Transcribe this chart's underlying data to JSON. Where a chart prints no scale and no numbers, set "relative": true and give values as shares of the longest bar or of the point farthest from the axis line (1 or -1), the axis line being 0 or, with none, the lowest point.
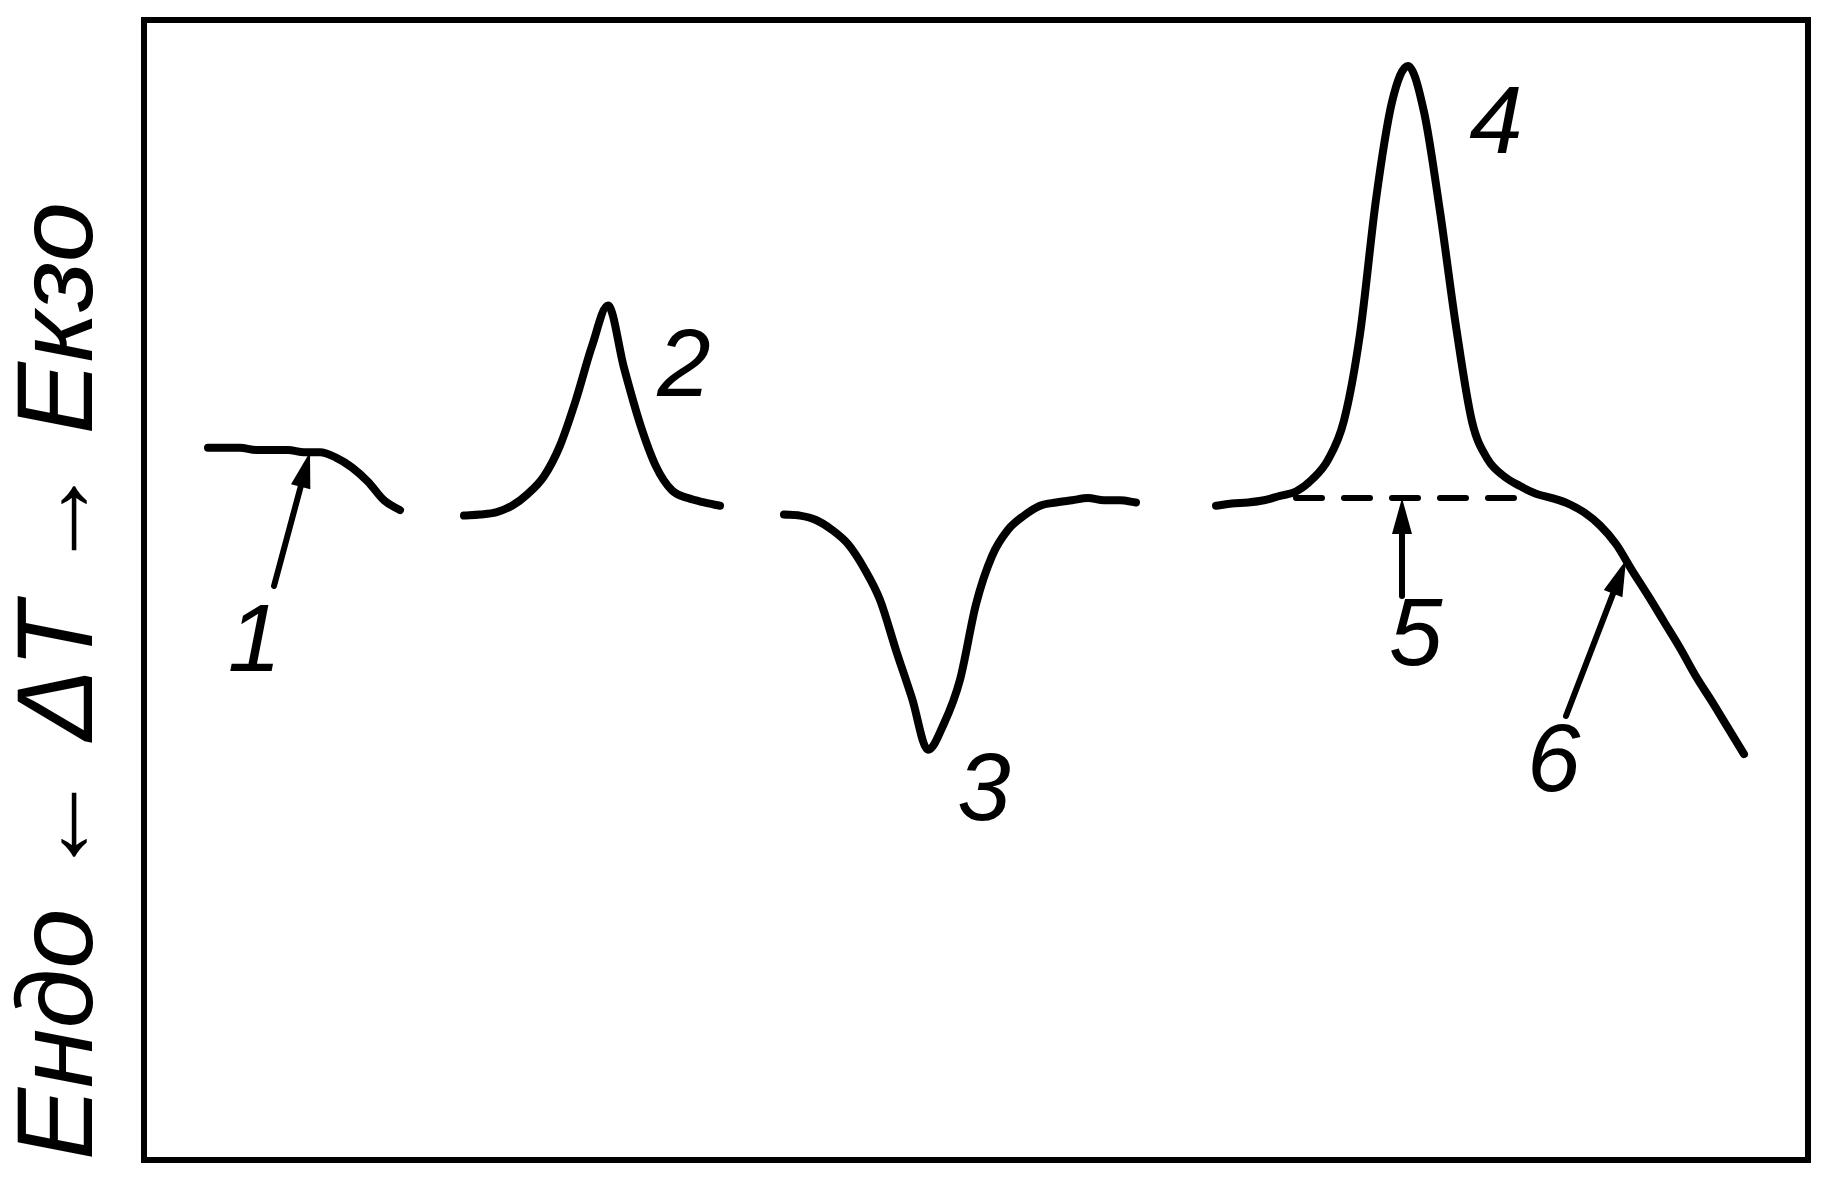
{
  "chart_data": {
    "type": "line",
    "ylabel": "Ендо ← ΔT → Екзо",
    "relative": true,
    "categories": [
      null,
      null,
      null,
      null,
      null,
      null,
      null,
      null,
      null,
      null,
      null,
      null,
      null,
      null,
      null,
      null,
      null,
      null,
      null,
      null,
      null,
      null,
      null,
      null,
      null,
      null,
      null,
      null,
      null,
      null,
      null,
      null,
      null,
      null,
      null,
      null,
      null,
      null,
      null,
      null,
      null,
      null,
      null,
      null,
      null,
      null,
      null,
      null,
      null,
      null,
      null,
      null,
      null,
      null,
      null,
      null,
      null,
      null,
      null,
      null,
      null,
      null,
      null,
      null,
      null,
      null,
      null,
      null,
      null,
      null,
      null,
      null,
      null,
      null,
      null,
      null,
      null,
      null,
      null,
      null,
      null,
      null,
      null,
      null,
      null,
      null,
      null,
      null,
      null,
      null,
      null,
      null,
      null,
      null,
      null,
      null,
      null,
      null,
      null,
      null,
      null,
      null,
      null,
      null,
      null
    ],
    "series": [
      {
        "color": "#000000",
        "values": [
          null,
          null,
          null,
          null,
          0.651,
          0.651,
          0.651,
          0.649,
          0.649,
          0.649,
          0.647,
          0.647,
          0.642,
          0.633,
          0.62,
          0.603,
          0.594,
          null,
          null,
          null,
          0.589,
          0.59,
          0.592,
          0.598,
          0.609,
          0.625,
          0.653,
          0.695,
          0.744,
          0.781,
          0.724,
          0.673,
          0.634,
          0.612,
          0.605,
          0.601,
          0.598,
          null,
          null,
          null,
          0.59,
          0.589,
          0.585,
          0.576,
          0.563,
          0.541,
          0.512,
          0.466,
          0.422,
          0.375,
          0.399,
          0.439,
          0.508,
          0.552,
          0.576,
          0.589,
          0.598,
          0.601,
          0.603,
          0.605,
          0.603,
          0.603,
          0.601,
          null,
          null,
          null,
          null,
          0.598,
          0.6,
          0.601,
          0.603,
          0.607,
          0.611,
          0.622,
          0.64,
          0.676,
          0.755,
          0.878,
          0.967,
          1,
          0.958,
          0.867,
          0.762,
          0.675,
          0.64,
          0.625,
          0.616,
          0.609,
          0.605,
          0.6,
          0.592,
          0.58,
          0.563,
          0.539,
          0.516,
          0.492,
          0.468,
          0.442,
          0.419,
          0.395,
          0.371,
          null,
          null,
          null,
          null
        ]
      },
      {
        "color": "#000000",
        "line_style": "dashed",
        "values": [
          null,
          null,
          null,
          null,
          null,
          null,
          null,
          null,
          null,
          null,
          null,
          null,
          null,
          null,
          null,
          null,
          null,
          null,
          null,
          null,
          null,
          null,
          null,
          null,
          null,
          null,
          null,
          null,
          null,
          null,
          null,
          null,
          null,
          null,
          null,
          null,
          null,
          null,
          null,
          null,
          null,
          null,
          null,
          null,
          null,
          null,
          null,
          null,
          null,
          null,
          null,
          null,
          null,
          null,
          null,
          null,
          null,
          null,
          null,
          null,
          null,
          null,
          null,
          null,
          null,
          null,
          null,
          null,
          null,
          null,
          null,
          null,
          0.605,
          0.605,
          0.605,
          0.605,
          0.605,
          0.605,
          0.605,
          0.605,
          0.605,
          0.605,
          0.605,
          0.605,
          0.605,
          0.605,
          0.605,
          null,
          null,
          null,
          null,
          null,
          null,
          null,
          null,
          null,
          null,
          null,
          null,
          null,
          null,
          null,
          null,
          null,
          null
        ]
      }
    ],
    "annotations": [
      {
        "text": "1",
        "y": 0.647
      },
      "2",
      "3",
      "4",
      {
        "text": "5",
        "y": 0.605
      },
      "6"
    ]
  }
}
